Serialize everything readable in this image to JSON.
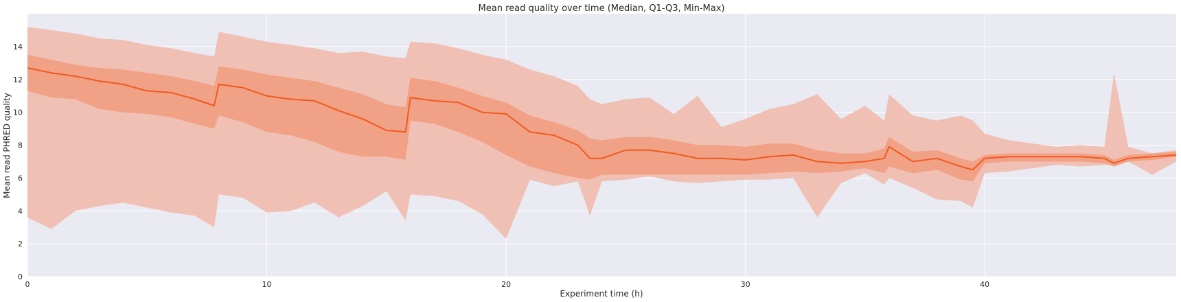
{
  "chart_data": {
    "type": "line",
    "title": "Mean read quality over time (Median, Q1-Q3, Min-Max)",
    "xlabel": "Experiment time (h)",
    "ylabel": "Mean read PHRED quality",
    "xlim": [
      0,
      48
    ],
    "ylim": [
      0,
      16
    ],
    "xticks": [
      0,
      10,
      20,
      30,
      40
    ],
    "yticks": [
      0,
      2,
      4,
      6,
      8,
      10,
      12,
      14
    ],
    "grid": true,
    "colors": {
      "median": "#f05a1e",
      "iqr": "#f1a185",
      "range": "#f0c0b5",
      "background": "#eaeaf2",
      "grid": "#ffffff"
    },
    "x": [
      0,
      1,
      2,
      3,
      4,
      5,
      6,
      7,
      7.8,
      8,
      9,
      10,
      11,
      12,
      13,
      14,
      15,
      15.8,
      16,
      17,
      18,
      19,
      20,
      21,
      22,
      23,
      23.5,
      24,
      25,
      26,
      27,
      28,
      29,
      30,
      31,
      32,
      33,
      34,
      35,
      35.8,
      36,
      37,
      38,
      39,
      39.5,
      40,
      41,
      42,
      43,
      44,
      45,
      45.4,
      46,
      47,
      48
    ],
    "median": [
      12.7,
      12.4,
      12.2,
      11.9,
      11.7,
      11.3,
      11.2,
      10.8,
      10.4,
      11.7,
      11.5,
      11.0,
      10.8,
      10.7,
      10.1,
      9.6,
      8.9,
      8.8,
      10.9,
      10.7,
      10.6,
      10.0,
      9.9,
      8.8,
      8.6,
      8.0,
      7.2,
      7.2,
      7.7,
      7.7,
      7.5,
      7.2,
      7.2,
      7.1,
      7.3,
      7.4,
      7.0,
      6.9,
      7.0,
      7.2,
      7.9,
      7.0,
      7.2,
      6.7,
      6.5,
      7.2,
      7.3,
      7.3,
      7.3,
      7.3,
      7.2,
      6.9,
      7.2,
      7.3,
      7.4
    ],
    "q1": [
      11.3,
      10.9,
      10.8,
      10.2,
      10.0,
      9.9,
      9.7,
      9.3,
      9.0,
      9.8,
      9.4,
      8.8,
      8.6,
      8.2,
      7.6,
      7.3,
      7.3,
      7.1,
      9.5,
      9.3,
      8.8,
      8.2,
      7.4,
      6.7,
      6.3,
      6.0,
      5.9,
      6.2,
      6.2,
      6.2,
      6.2,
      6.2,
      6.2,
      6.2,
      6.3,
      6.4,
      6.3,
      6.4,
      6.6,
      6.3,
      6.7,
      6.3,
      6.5,
      5.9,
      5.8,
      6.9,
      7.0,
      7.0,
      7.0,
      7.0,
      6.9,
      6.7,
      7.0,
      7.1,
      7.3
    ],
    "q3": [
      13.5,
      13.2,
      12.9,
      12.7,
      12.6,
      12.4,
      12.2,
      11.9,
      11.6,
      12.8,
      12.6,
      12.3,
      12.1,
      11.9,
      11.5,
      11.1,
      10.5,
      10.3,
      12.1,
      11.9,
      11.5,
      11.0,
      10.6,
      9.8,
      9.4,
      8.9,
      8.4,
      8.3,
      8.5,
      8.5,
      8.3,
      8.0,
      8.0,
      7.9,
      8.1,
      8.1,
      7.7,
      7.5,
      7.5,
      7.8,
      8.5,
      7.6,
      7.7,
      7.2,
      7.0,
      7.4,
      7.5,
      7.5,
      7.5,
      7.5,
      7.4,
      7.1,
      7.4,
      7.5,
      7.6
    ],
    "min": [
      3.6,
      2.9,
      4.0,
      4.3,
      4.5,
      4.2,
      3.9,
      3.7,
      3.0,
      5.0,
      4.8,
      3.9,
      4.0,
      4.5,
      3.6,
      4.3,
      5.2,
      3.4,
      5.0,
      4.9,
      4.6,
      3.8,
      2.3,
      5.9,
      5.5,
      5.8,
      3.7,
      5.8,
      5.9,
      6.1,
      5.8,
      5.7,
      5.8,
      5.9,
      5.9,
      6.0,
      3.6,
      5.7,
      6.3,
      5.6,
      6.0,
      5.4,
      4.7,
      4.6,
      4.2,
      6.3,
      6.4,
      6.6,
      6.8,
      6.7,
      6.8,
      6.8,
      7.0,
      6.2,
      7.0
    ],
    "max": [
      15.2,
      15.0,
      14.8,
      14.5,
      14.4,
      14.1,
      13.9,
      13.6,
      13.4,
      14.9,
      14.6,
      14.3,
      14.1,
      13.9,
      13.6,
      13.7,
      13.4,
      13.3,
      14.3,
      14.2,
      13.9,
      13.5,
      13.2,
      12.6,
      12.2,
      11.6,
      10.8,
      10.5,
      10.8,
      10.9,
      9.9,
      11.0,
      9.1,
      9.6,
      10.2,
      10.5,
      11.1,
      9.6,
      10.4,
      9.5,
      11.1,
      9.8,
      9.5,
      9.8,
      9.5,
      8.7,
      8.3,
      8.1,
      7.9,
      8.0,
      7.9,
      12.4,
      7.9,
      7.5,
      7.7
    ]
  }
}
